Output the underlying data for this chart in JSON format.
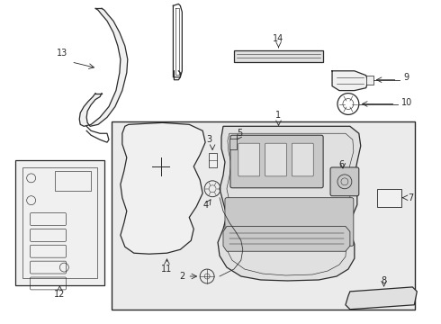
{
  "bg_color": "#ffffff",
  "line_color": "#2a2a2a",
  "fill_light": "#f0f0f0",
  "fill_mid": "#e0e0e0",
  "fill_dark": "#c8c8c8",
  "box_fill": "#ebebeb",
  "figsize": [
    4.9,
    3.6
  ],
  "dpi": 100
}
